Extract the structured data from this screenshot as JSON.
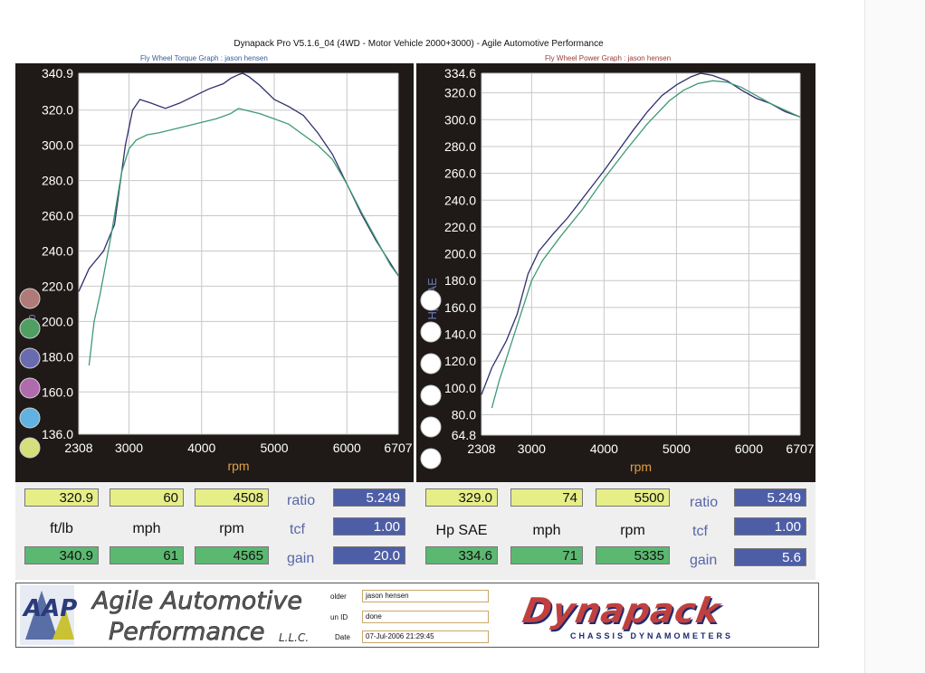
{
  "header": {
    "title": "Dynapack Pro V5.1.6_04 (4WD - Motor Vehicle 2000+3000) - Agile Automotive Performance",
    "left_subtitle": "Fly Wheel Torque Graph : jason hensen",
    "right_subtitle": "Fly Wheel Power Graph : jason hensen"
  },
  "colors": {
    "panel_bg": "#1f1a17",
    "blue_trace": "#2f2f6e",
    "green_trace": "#3e9a72",
    "grid": "#c8c8c8",
    "axis_text": "#ffffff",
    "rpm_label": "#e0a040"
  },
  "chart_data": [
    {
      "type": "line",
      "title": "Fly Wheel Torque Graph : jason hensen",
      "xlabel": "rpm",
      "ylabel": "ft/lb",
      "xlim": [
        2308,
        6707
      ],
      "ylim": [
        136.0,
        340.9
      ],
      "xticks": [
        "2308",
        "3000",
        "4000",
        "5000",
        "6000",
        "6707"
      ],
      "yticks": [
        "340.9",
        "320.0",
        "300.0",
        "280.0",
        "260.0",
        "240.0",
        "220.0",
        "200.0",
        "180.0",
        "160.0",
        "136.0"
      ],
      "series": [
        {
          "color": "#2f2f6e",
          "x": [
            2308,
            2450,
            2650,
            2800,
            2950,
            3050,
            3150,
            3300,
            3500,
            3700,
            3900,
            4100,
            4300,
            4400,
            4500,
            4565,
            4650,
            4800,
            5000,
            5200,
            5400,
            5600,
            5800,
            6000,
            6200,
            6400,
            6600,
            6707
          ],
          "y": [
            217,
            230,
            240,
            255,
            300,
            320,
            326,
            324,
            321,
            324,
            328,
            332,
            335,
            338,
            340,
            340.9,
            339,
            334,
            326,
            322,
            317,
            307,
            295,
            278,
            261,
            246,
            233,
            226
          ]
        },
        {
          "color": "#3e9a72",
          "x": [
            2450,
            2520,
            2600,
            2750,
            2900,
            3000,
            3100,
            3250,
            3400,
            3600,
            3800,
            4000,
            4200,
            4400,
            4508,
            4600,
            4800,
            5000,
            5200,
            5400,
            5600,
            5800,
            6000,
            6200,
            6400,
            6600,
            6707
          ],
          "y": [
            175,
            200,
            215,
            248,
            285,
            298,
            303,
            306,
            307,
            309,
            311,
            313,
            315,
            318,
            320.9,
            320,
            318,
            315,
            312,
            306,
            300,
            292,
            278,
            262,
            247,
            232,
            226
          ]
        }
      ]
    },
    {
      "type": "line",
      "title": "Fly Wheel Power Graph : jason hensen",
      "xlabel": "rpm",
      "ylabel": "Hp SAE",
      "xlim": [
        2308,
        6707
      ],
      "ylim": [
        64.8,
        334.6
      ],
      "xticks": [
        "2308",
        "3000",
        "4000",
        "5000",
        "6000",
        "6707"
      ],
      "yticks": [
        "334.6",
        "320.0",
        "300.0",
        "280.0",
        "260.0",
        "240.0",
        "220.0",
        "200.0",
        "180.0",
        "160.0",
        "140.0",
        "120.0",
        "100.0",
        "80.0",
        "64.8"
      ],
      "series": [
        {
          "color": "#2f2f6e",
          "x": [
            2308,
            2450,
            2650,
            2800,
            2950,
            3100,
            3300,
            3500,
            3800,
            4000,
            4200,
            4400,
            4600,
            4800,
            5000,
            5200,
            5335,
            5500,
            5700,
            5900,
            6100,
            6300,
            6500,
            6707
          ],
          "y": [
            95,
            115,
            135,
            155,
            185,
            202,
            215,
            227,
            248,
            262,
            277,
            292,
            306,
            318,
            326,
            332,
            334.6,
            333,
            329,
            322,
            316,
            312,
            306,
            302
          ]
        },
        {
          "color": "#3e9a72",
          "x": [
            2450,
            2550,
            2700,
            2850,
            3000,
            3150,
            3400,
            3700,
            4000,
            4300,
            4600,
            4900,
            5100,
            5300,
            5500,
            5700,
            5900,
            6100,
            6300,
            6500,
            6707
          ],
          "y": [
            85,
            105,
            130,
            155,
            180,
            195,
            213,
            233,
            256,
            277,
            297,
            314,
            322,
            327,
            329.0,
            328,
            324,
            318,
            312,
            307,
            302
          ]
        }
      ]
    }
  ],
  "legend_left": [
    "#b07a78",
    "#4f9f62",
    "#6a6ab0",
    "#b06aae",
    "#5fb2e2",
    "#d6e07a"
  ],
  "legend_right": [
    "#ffffff",
    "#ffffff",
    "#ffffff",
    "#ffffff",
    "#ffffff",
    "#ffffff"
  ],
  "readouts_left": {
    "row1": [
      "320.9",
      "60",
      "4508"
    ],
    "units": [
      "ft/lb",
      "mph",
      "rpm"
    ],
    "row2": [
      "340.9",
      "61",
      "4565"
    ],
    "ratio_label": "ratio",
    "ratio": "5.249",
    "tcf_label": "tcf",
    "tcf": "1.00",
    "gain_label": "gain",
    "gain": "20.0"
  },
  "readouts_right": {
    "row1": [
      "329.0",
      "74",
      "5500"
    ],
    "units": [
      "Hp SAE",
      "mph",
      "rpm"
    ],
    "row2": [
      "334.6",
      "71",
      "5335"
    ],
    "ratio_label": "ratio",
    "ratio": "5.249",
    "tcf_label": "tcf",
    "tcf": "1.00",
    "gain_label": "gain",
    "gain": "5.6"
  },
  "footer": {
    "logo_letters": "AAP",
    "logo_line1": "Agile Automotive",
    "logo_line2": "Performance",
    "logo_llc": "L.L.C.",
    "folder_label": "older",
    "folder_value": "jason hensen",
    "run_label": "un ID",
    "run_value": "done",
    "date_label": "Date",
    "date_value": "07-Jul-2006  21:29:45",
    "brand": "Dynapack",
    "brand_sub": "CHASSIS DYNAMOMETERS"
  }
}
